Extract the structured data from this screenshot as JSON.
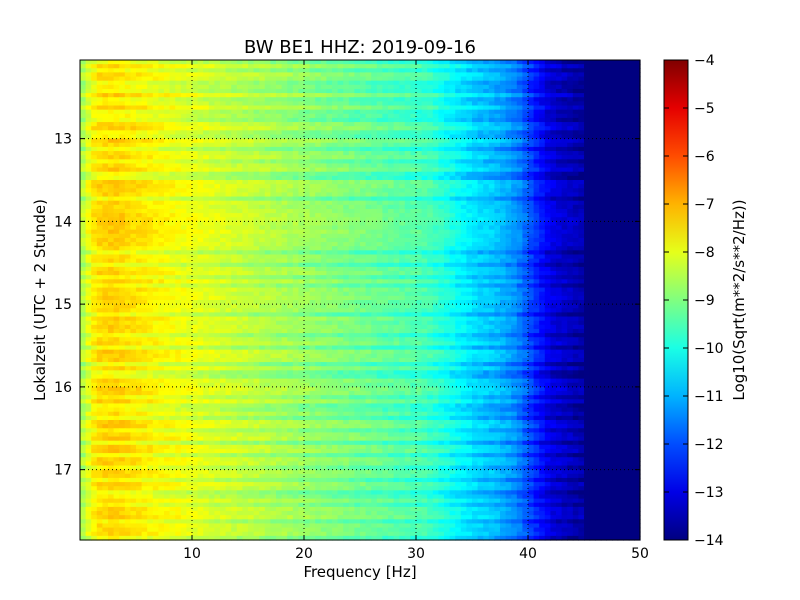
{
  "chart_data": {
    "type": "heatmap",
    "title": "BW BE1 HHZ: 2019-09-16",
    "xlabel": "Frequency [Hz]",
    "ylabel": "Lokalzeit (UTC + 2 Stunde)",
    "xlim": [
      0,
      50
    ],
    "ylim": [
      12.05,
      17.85
    ],
    "y_inverted": true,
    "x_ticks": [
      10,
      20,
      30,
      40,
      50
    ],
    "x_tick_labels": [
      "10",
      "20",
      "30",
      "40",
      "50"
    ],
    "y_ticks": [
      13,
      14,
      15,
      16,
      17
    ],
    "y_tick_labels": [
      "13",
      "14",
      "15",
      "16",
      "17"
    ],
    "grid": true,
    "colormap": "jet",
    "colorbar": {
      "label": "Log10(Sqrt(m**2/s**2/Hz))",
      "range": [
        -14,
        -4
      ],
      "ticks": [
        -4,
        -5,
        -6,
        -7,
        -8,
        -9,
        -10,
        -11,
        -12,
        -13,
        -14
      ],
      "tick_labels": [
        "−4",
        "−5",
        "−6",
        "−7",
        "−8",
        "−9",
        "−10",
        "−11",
        "−12",
        "−13",
        "−14"
      ]
    },
    "spectrum_profile": {
      "frequency_hz": [
        0,
        0.8,
        1.5,
        3,
        5,
        8,
        12,
        16,
        20,
        24,
        28,
        31,
        33,
        35,
        37,
        39,
        40.5,
        42,
        44,
        45.5,
        47,
        50
      ],
      "level": [
        -9.0,
        -8.3,
        -7.8,
        -7.7,
        -7.9,
        -8.2,
        -8.5,
        -8.8,
        -9.1,
        -9.4,
        -9.7,
        -9.9,
        -10.4,
        -10.9,
        -11.2,
        -11.7,
        -12.6,
        -13.4,
        -13.8,
        -14.0,
        -14.0,
        -14.0
      ]
    },
    "bright_bands_local_time": [
      12.12,
      12.25,
      12.48,
      12.62,
      12.85,
      13.05,
      13.2,
      13.35,
      13.55,
      13.62,
      13.68,
      13.76,
      13.85,
      13.95,
      14.05,
      14.12,
      14.2,
      14.3,
      14.45,
      14.6,
      14.72,
      14.85,
      14.95,
      15.05,
      15.18,
      15.25,
      15.32,
      15.45,
      15.58,
      15.65,
      15.78,
      15.92,
      16.0,
      16.08,
      16.18,
      16.32,
      16.45,
      16.6,
      16.75,
      16.9,
      17.05,
      17.2,
      17.38,
      17.5,
      17.58,
      17.7,
      17.78
    ]
  }
}
